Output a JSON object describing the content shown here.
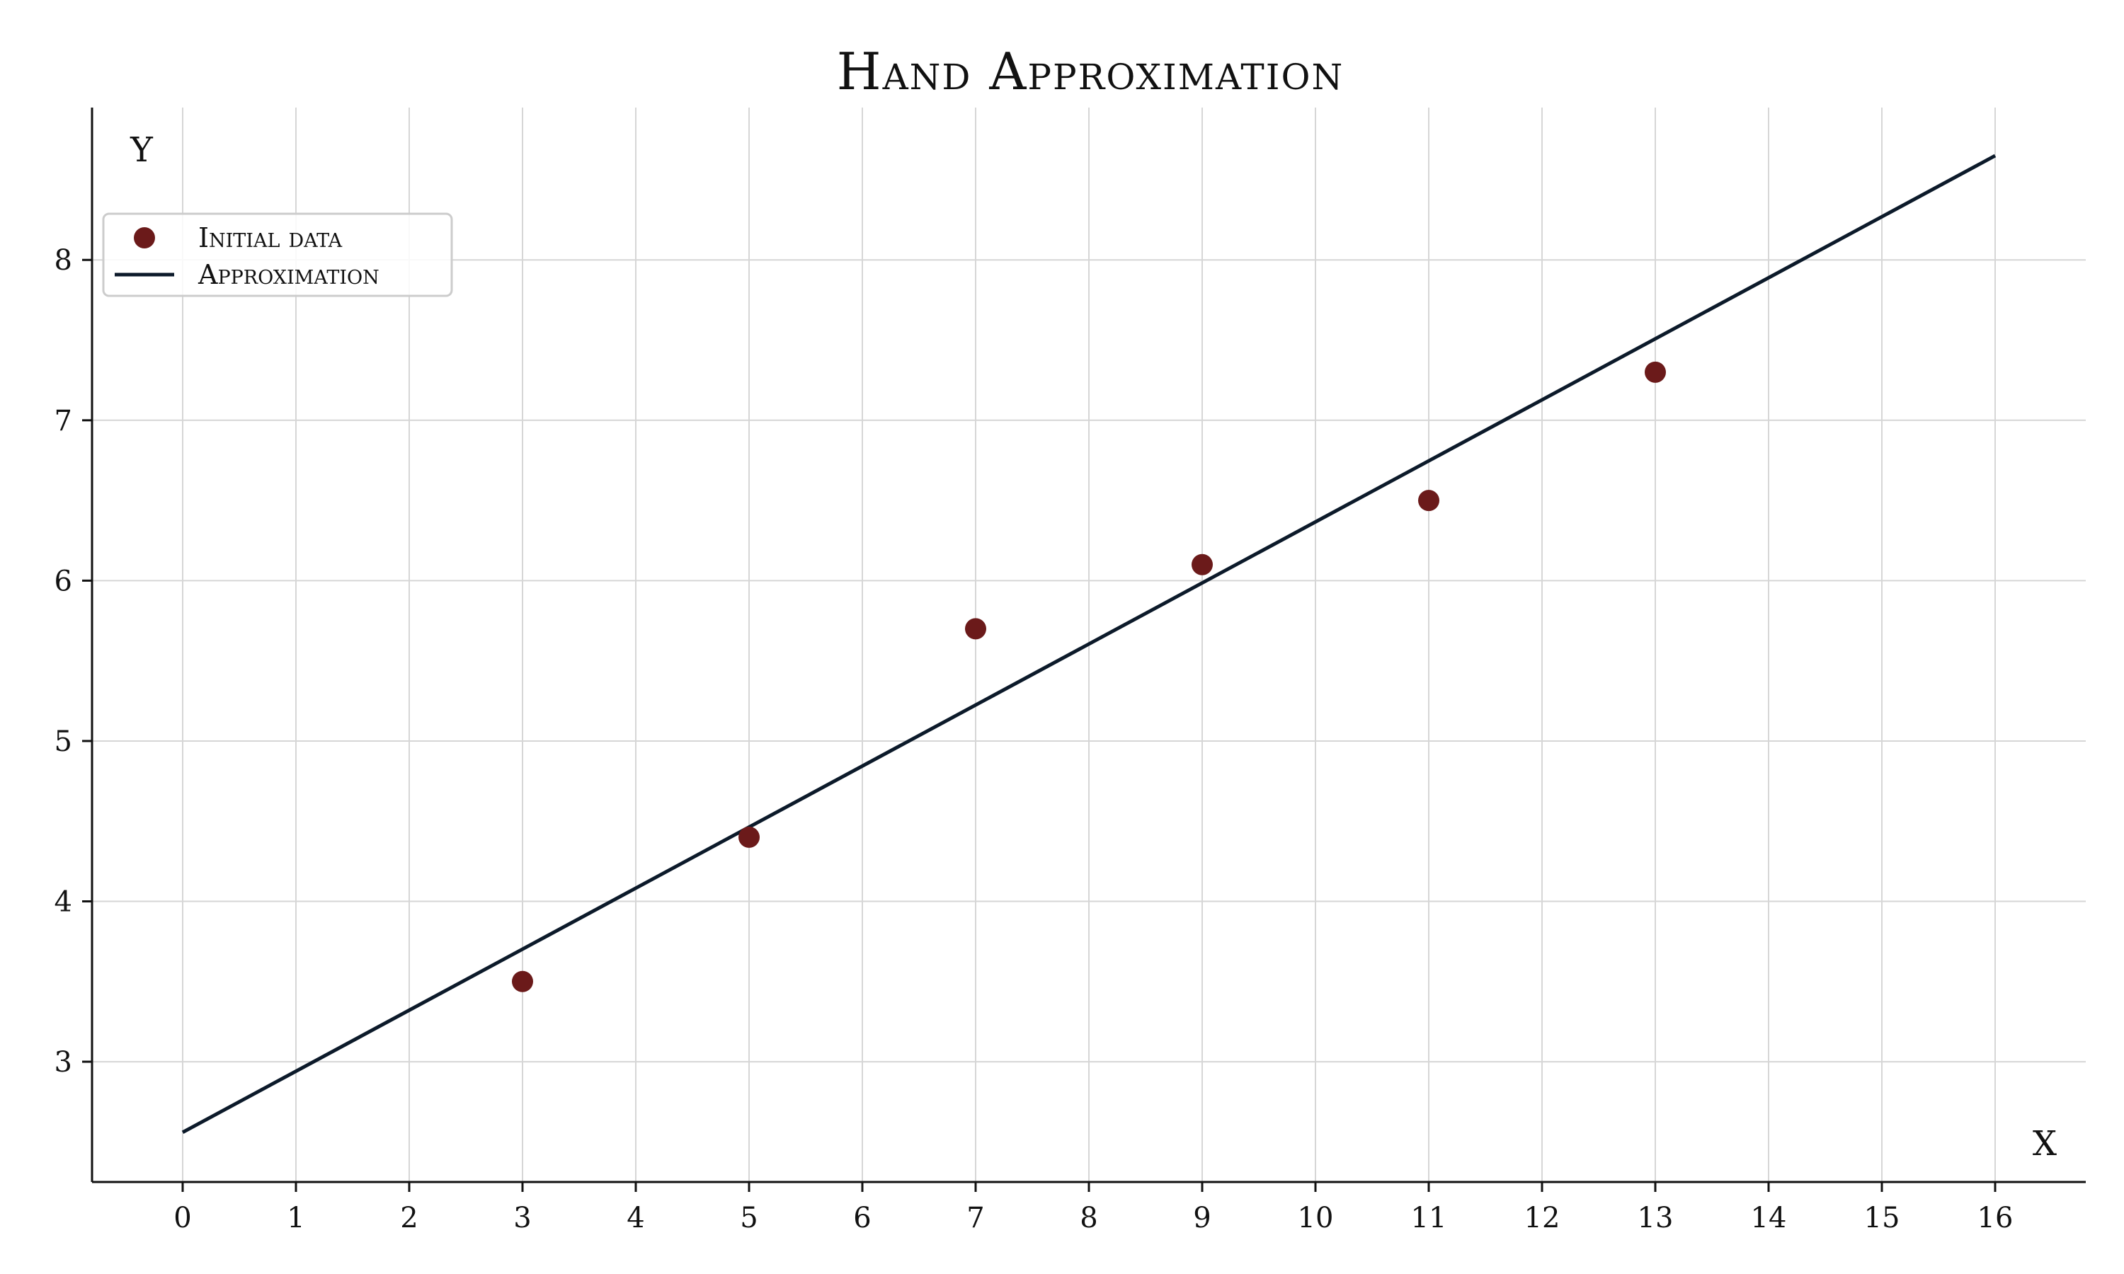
{
  "chart_data": {
    "type": "scatter",
    "title": "Hand Approximation",
    "xlabel": "X",
    "ylabel": "Y",
    "xlim": [
      -0.8,
      16.8
    ],
    "ylim": [
      2.25,
      8.95
    ],
    "x_ticks": [
      0,
      1,
      2,
      3,
      4,
      5,
      6,
      7,
      8,
      9,
      10,
      11,
      12,
      13,
      14,
      15,
      16
    ],
    "y_ticks": [
      3,
      4,
      5,
      6,
      7,
      8
    ],
    "grid": true,
    "legend_position": "upper-left",
    "series": [
      {
        "name": "Initial data",
        "kind": "scatter",
        "color": "#6b1a1a",
        "x": [
          3,
          5,
          7,
          9,
          11,
          13
        ],
        "y": [
          3.5,
          4.4,
          5.7,
          6.1,
          6.5,
          7.3
        ]
      },
      {
        "name": "Approximation",
        "kind": "line",
        "color": "#0c1a2a",
        "x": [
          0,
          16
        ],
        "y": [
          2.56,
          8.65
        ]
      }
    ]
  }
}
